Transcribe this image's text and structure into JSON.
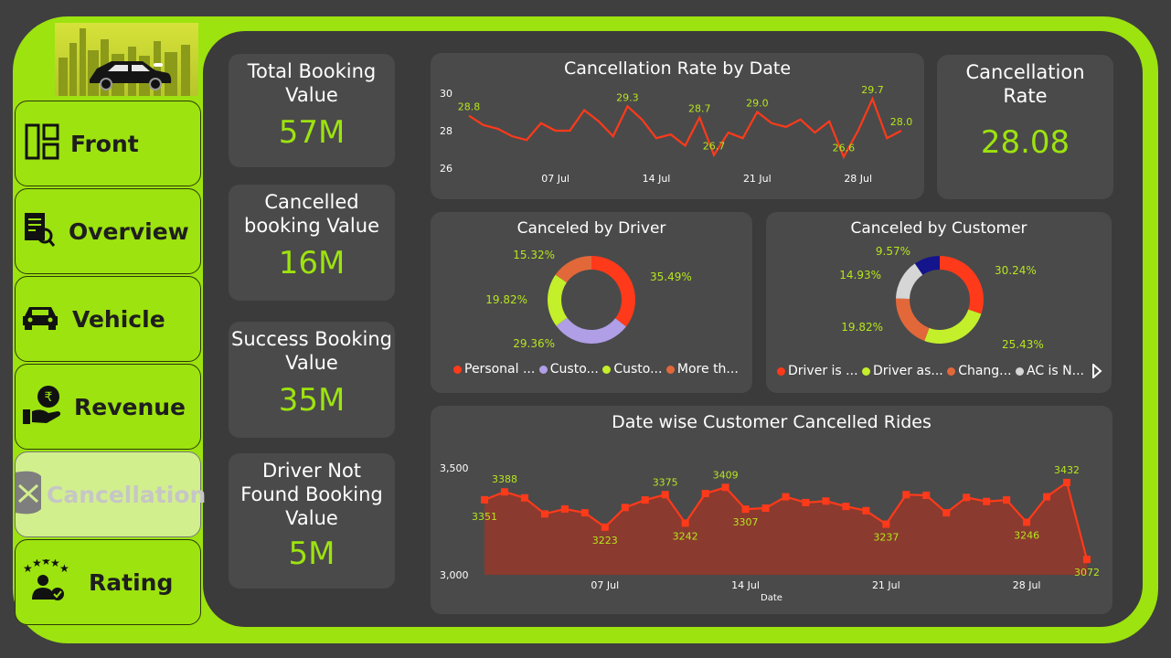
{
  "nav": {
    "front": "Front",
    "overview": "Overview",
    "vehicle": "Vehicle",
    "revenue": "Revenue",
    "cancellation": "Cancellation",
    "rating": "Rating"
  },
  "kpis": {
    "total_label": "Total Booking Value",
    "total_value": "57M",
    "cancelled_label": "Cancelled booking Value",
    "cancelled_value": "16M",
    "success_label": "Success Booking Value",
    "success_value": "35M",
    "dnf_label": "Driver Not Found Booking Value",
    "dnf_value": "5M",
    "rate_label": "Cancellation Rate",
    "rate_value": "28.08"
  },
  "colors": {
    "accent": "#9de30f",
    "line": "#ff3a1a",
    "area": "#8a3a2e",
    "card": "#4a4a4a"
  },
  "chart_data": [
    {
      "type": "line",
      "title": "Cancellation Rate by Date",
      "ylim": [
        26,
        30
      ],
      "yticks": [
        "26",
        "28",
        "30"
      ],
      "xticks": [
        {
          "label": "07 Jul",
          "x": 6
        },
        {
          "label": "14 Jul",
          "x": 13
        },
        {
          "label": "21 Jul",
          "x": 20
        },
        {
          "label": "28 Jul",
          "x": 27
        }
      ],
      "x": [
        0,
        1,
        2,
        3,
        4,
        5,
        6,
        7,
        8,
        9,
        10,
        11,
        12,
        13,
        14,
        15,
        16,
        17,
        18,
        19,
        20,
        21,
        22,
        23,
        24,
        25,
        26,
        27,
        28,
        29,
        30
      ],
      "values": [
        28.8,
        28.3,
        28.1,
        27.7,
        27.5,
        28.4,
        28.0,
        28.0,
        29.1,
        28.5,
        27.7,
        29.3,
        28.6,
        27.6,
        27.8,
        27.2,
        28.7,
        26.7,
        27.9,
        27.6,
        29.0,
        28.4,
        28.2,
        28.6,
        27.9,
        28.5,
        26.6,
        28.0,
        29.7,
        27.6,
        28.0
      ],
      "labels": [
        {
          "i": 0,
          "text": "28.8"
        },
        {
          "i": 11,
          "text": "29.3"
        },
        {
          "i": 16,
          "text": "28.7"
        },
        {
          "i": 17,
          "text": "26.7"
        },
        {
          "i": 20,
          "text": "29.0"
        },
        {
          "i": 26,
          "text": "26.6"
        },
        {
          "i": 28,
          "text": "29.7"
        },
        {
          "i": 30,
          "text": "28.0"
        }
      ]
    },
    {
      "type": "pie",
      "title": "Canceled by Driver",
      "slices": [
        {
          "label": "Personal ...",
          "value": 35.49,
          "text": "35.49%",
          "color": "#ff3a1a"
        },
        {
          "label": "Custo...",
          "value": 29.36,
          "text": "29.36%",
          "color": "#b09ee6"
        },
        {
          "label": "Custo...",
          "value": 19.82,
          "text": "19.82%",
          "color": "#c3ef2b"
        },
        {
          "label": "More th...",
          "value": 15.32,
          "text": "15.32%",
          "color": "#e2683a"
        }
      ]
    },
    {
      "type": "pie",
      "title": "Canceled by Customer",
      "slices": [
        {
          "label": "Driver is ...",
          "value": 30.24,
          "text": "30.24%",
          "color": "#ff3a1a"
        },
        {
          "label": "Driver as...",
          "value": 25.43,
          "text": "25.43%",
          "color": "#c3ef2b"
        },
        {
          "label": "Chang...",
          "value": 19.82,
          "text": "19.82%",
          "color": "#e2683a"
        },
        {
          "label": "AC is N...",
          "value": 14.93,
          "text": "14.93%",
          "color": "#d6d6d6"
        },
        {
          "label": "",
          "value": 9.57,
          "text": "9.57%",
          "color": "#14148c"
        }
      ]
    },
    {
      "type": "area",
      "title": "Date wise Customer Cancelled Rides",
      "xlabel": "Date",
      "ylim": [
        3000,
        3500
      ],
      "yticks": [
        "3,000",
        "3,500"
      ],
      "xticks": [
        {
          "label": "07 Jul",
          "x": 6
        },
        {
          "label": "14 Jul",
          "x": 13
        },
        {
          "label": "21 Jul",
          "x": 20
        },
        {
          "label": "28 Jul",
          "x": 27
        }
      ],
      "x": [
        0,
        1,
        2,
        3,
        4,
        5,
        6,
        7,
        8,
        9,
        10,
        11,
        12,
        13,
        14,
        15,
        16,
        17,
        18,
        19,
        20,
        21,
        22,
        23,
        24,
        25,
        26,
        27,
        28,
        29,
        30
      ],
      "values": [
        3351,
        3388,
        3360,
        3285,
        3308,
        3290,
        3223,
        3315,
        3350,
        3375,
        3242,
        3380,
        3409,
        3307,
        3312,
        3365,
        3338,
        3345,
        3320,
        3300,
        3237,
        3375,
        3372,
        3290,
        3362,
        3343,
        3350,
        3246,
        3365,
        3432,
        3072
      ],
      "labels": [
        {
          "i": 0,
          "text": "3351"
        },
        {
          "i": 1,
          "text": "3388"
        },
        {
          "i": 6,
          "text": "3223"
        },
        {
          "i": 9,
          "text": "3375"
        },
        {
          "i": 10,
          "text": "3242"
        },
        {
          "i": 12,
          "text": "3409"
        },
        {
          "i": 13,
          "text": "3307"
        },
        {
          "i": 20,
          "text": "3237"
        },
        {
          "i": 27,
          "text": "3246"
        },
        {
          "i": 29,
          "text": "3432"
        },
        {
          "i": 30,
          "text": "3072"
        }
      ]
    }
  ]
}
